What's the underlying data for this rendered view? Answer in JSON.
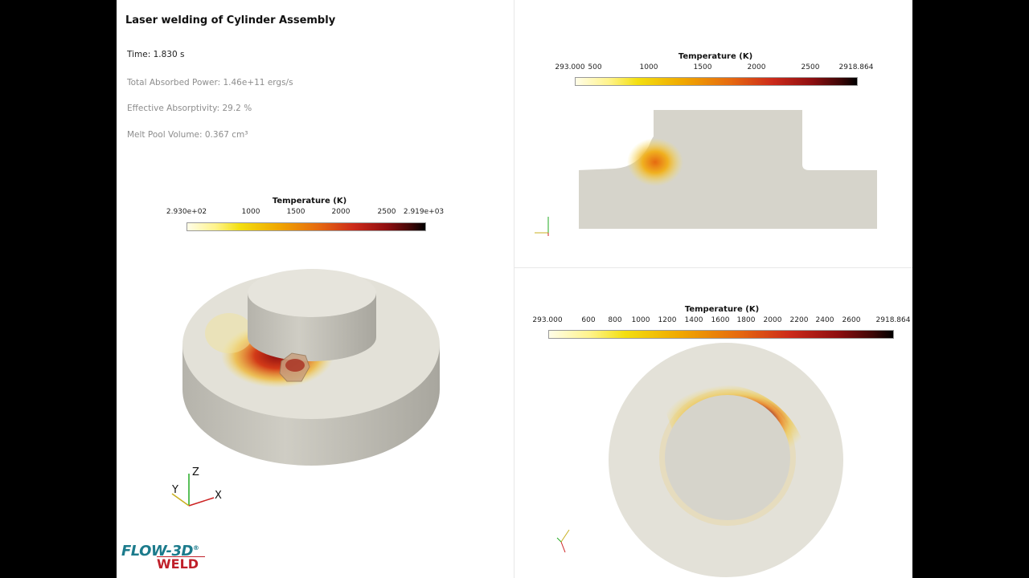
{
  "title": "Laser welding of Cylinder Assembly",
  "time": "Time: 1.830 s",
  "total_power": "Total Absorbed Power: 1.46e+11 ergs/s",
  "absorptivity": "Effective Absorptivity: 29.2 %",
  "melt_pool": "Melt Pool Volume: 0.367 cm³",
  "legend_left": {
    "title": "Temperature (K)",
    "min": "2.930e+02",
    "ticks": [
      "1000",
      "1500",
      "2000",
      "2500"
    ],
    "max": "2.919e+03"
  },
  "legend_top_right": {
    "title": "Temperature (K)",
    "ticks": [
      "293.000",
      "500",
      "1000",
      "1500",
      "2000",
      "2500",
      "2918.864"
    ]
  },
  "legend_bottom_right": {
    "title": "Temperature (K)",
    "ticks": [
      "293.000",
      "600",
      "800",
      "1000",
      "1200",
      "1400",
      "1600",
      "1800",
      "2000",
      "2200",
      "2400",
      "2600",
      "2918.864"
    ]
  },
  "axes": {
    "x": "X",
    "y": "Y",
    "z": "Z"
  },
  "logo": {
    "line1": "FLOW-3D",
    "line2": "WELD",
    "mark": "®"
  },
  "colors": {
    "hot": "#8e0e10",
    "mid": "#e66a10",
    "warm": "#f3df10",
    "metal": "#d6d4cb"
  }
}
